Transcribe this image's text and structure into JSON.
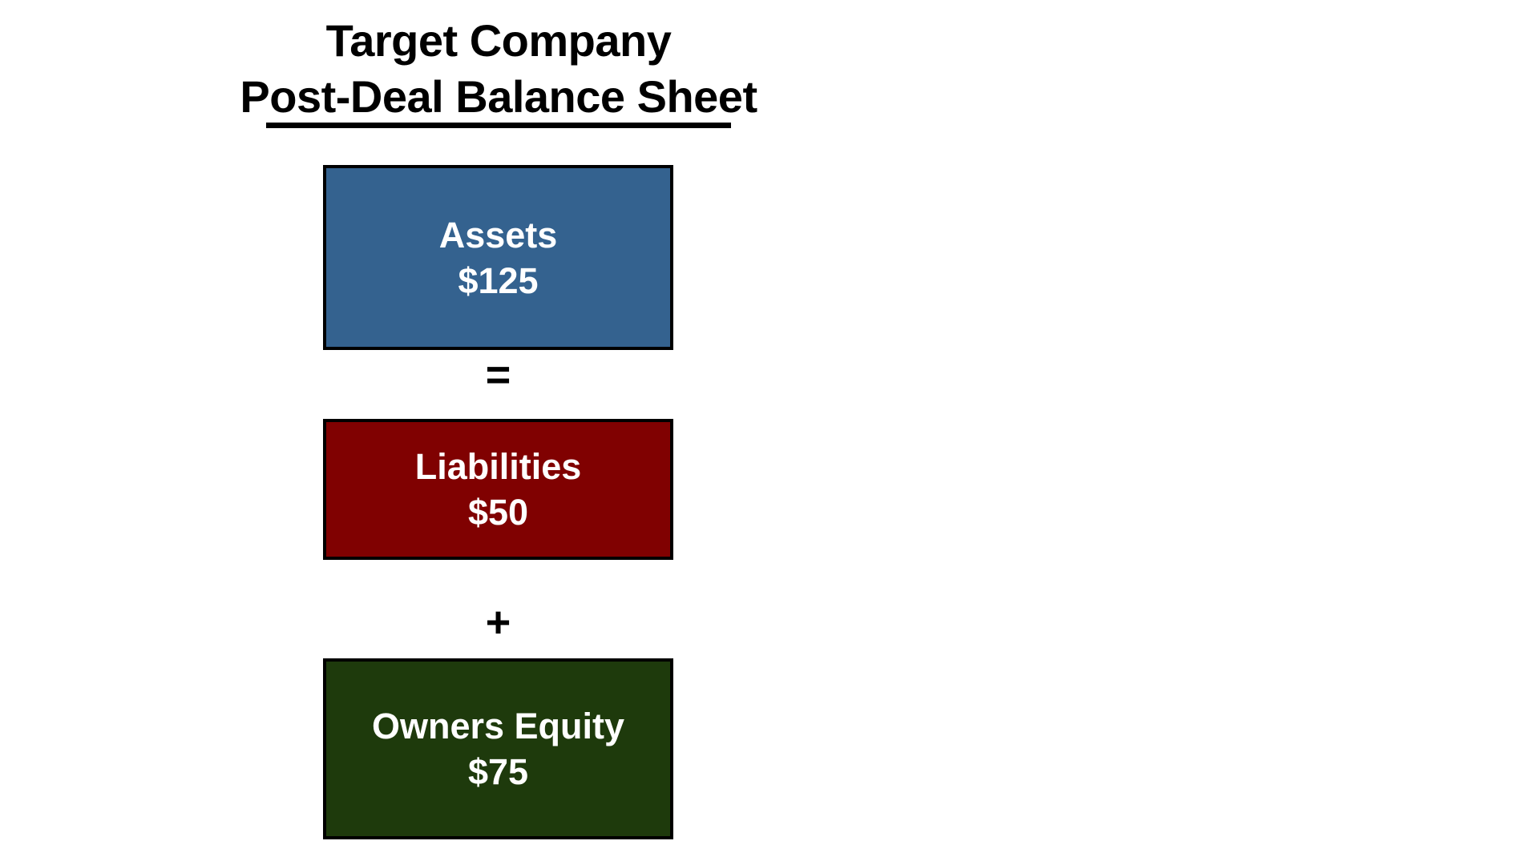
{
  "title": {
    "line1": "Target Company",
    "line2": "Post-Deal Balance Sheet"
  },
  "diagram": {
    "equation": "Assets = Liabilities + Owners Equity",
    "boxes": [
      {
        "label": "Assets",
        "value": "$125",
        "color": "#34628F"
      },
      {
        "label": "Liabilities",
        "value": "$50",
        "color": "#800101"
      },
      {
        "label": "Owners Equity",
        "value": "$75",
        "color": "#1E3A0C"
      }
    ],
    "operators": [
      {
        "symbol": "="
      },
      {
        "symbol": "+"
      }
    ]
  },
  "colors": {
    "background": "#FFFFFF",
    "title_text": "#000000",
    "box_border": "#000000",
    "box_text": "#FFFFFF",
    "assets_blue": "#34628F",
    "liabilities_red": "#800101",
    "equity_green": "#1E3A0C"
  }
}
